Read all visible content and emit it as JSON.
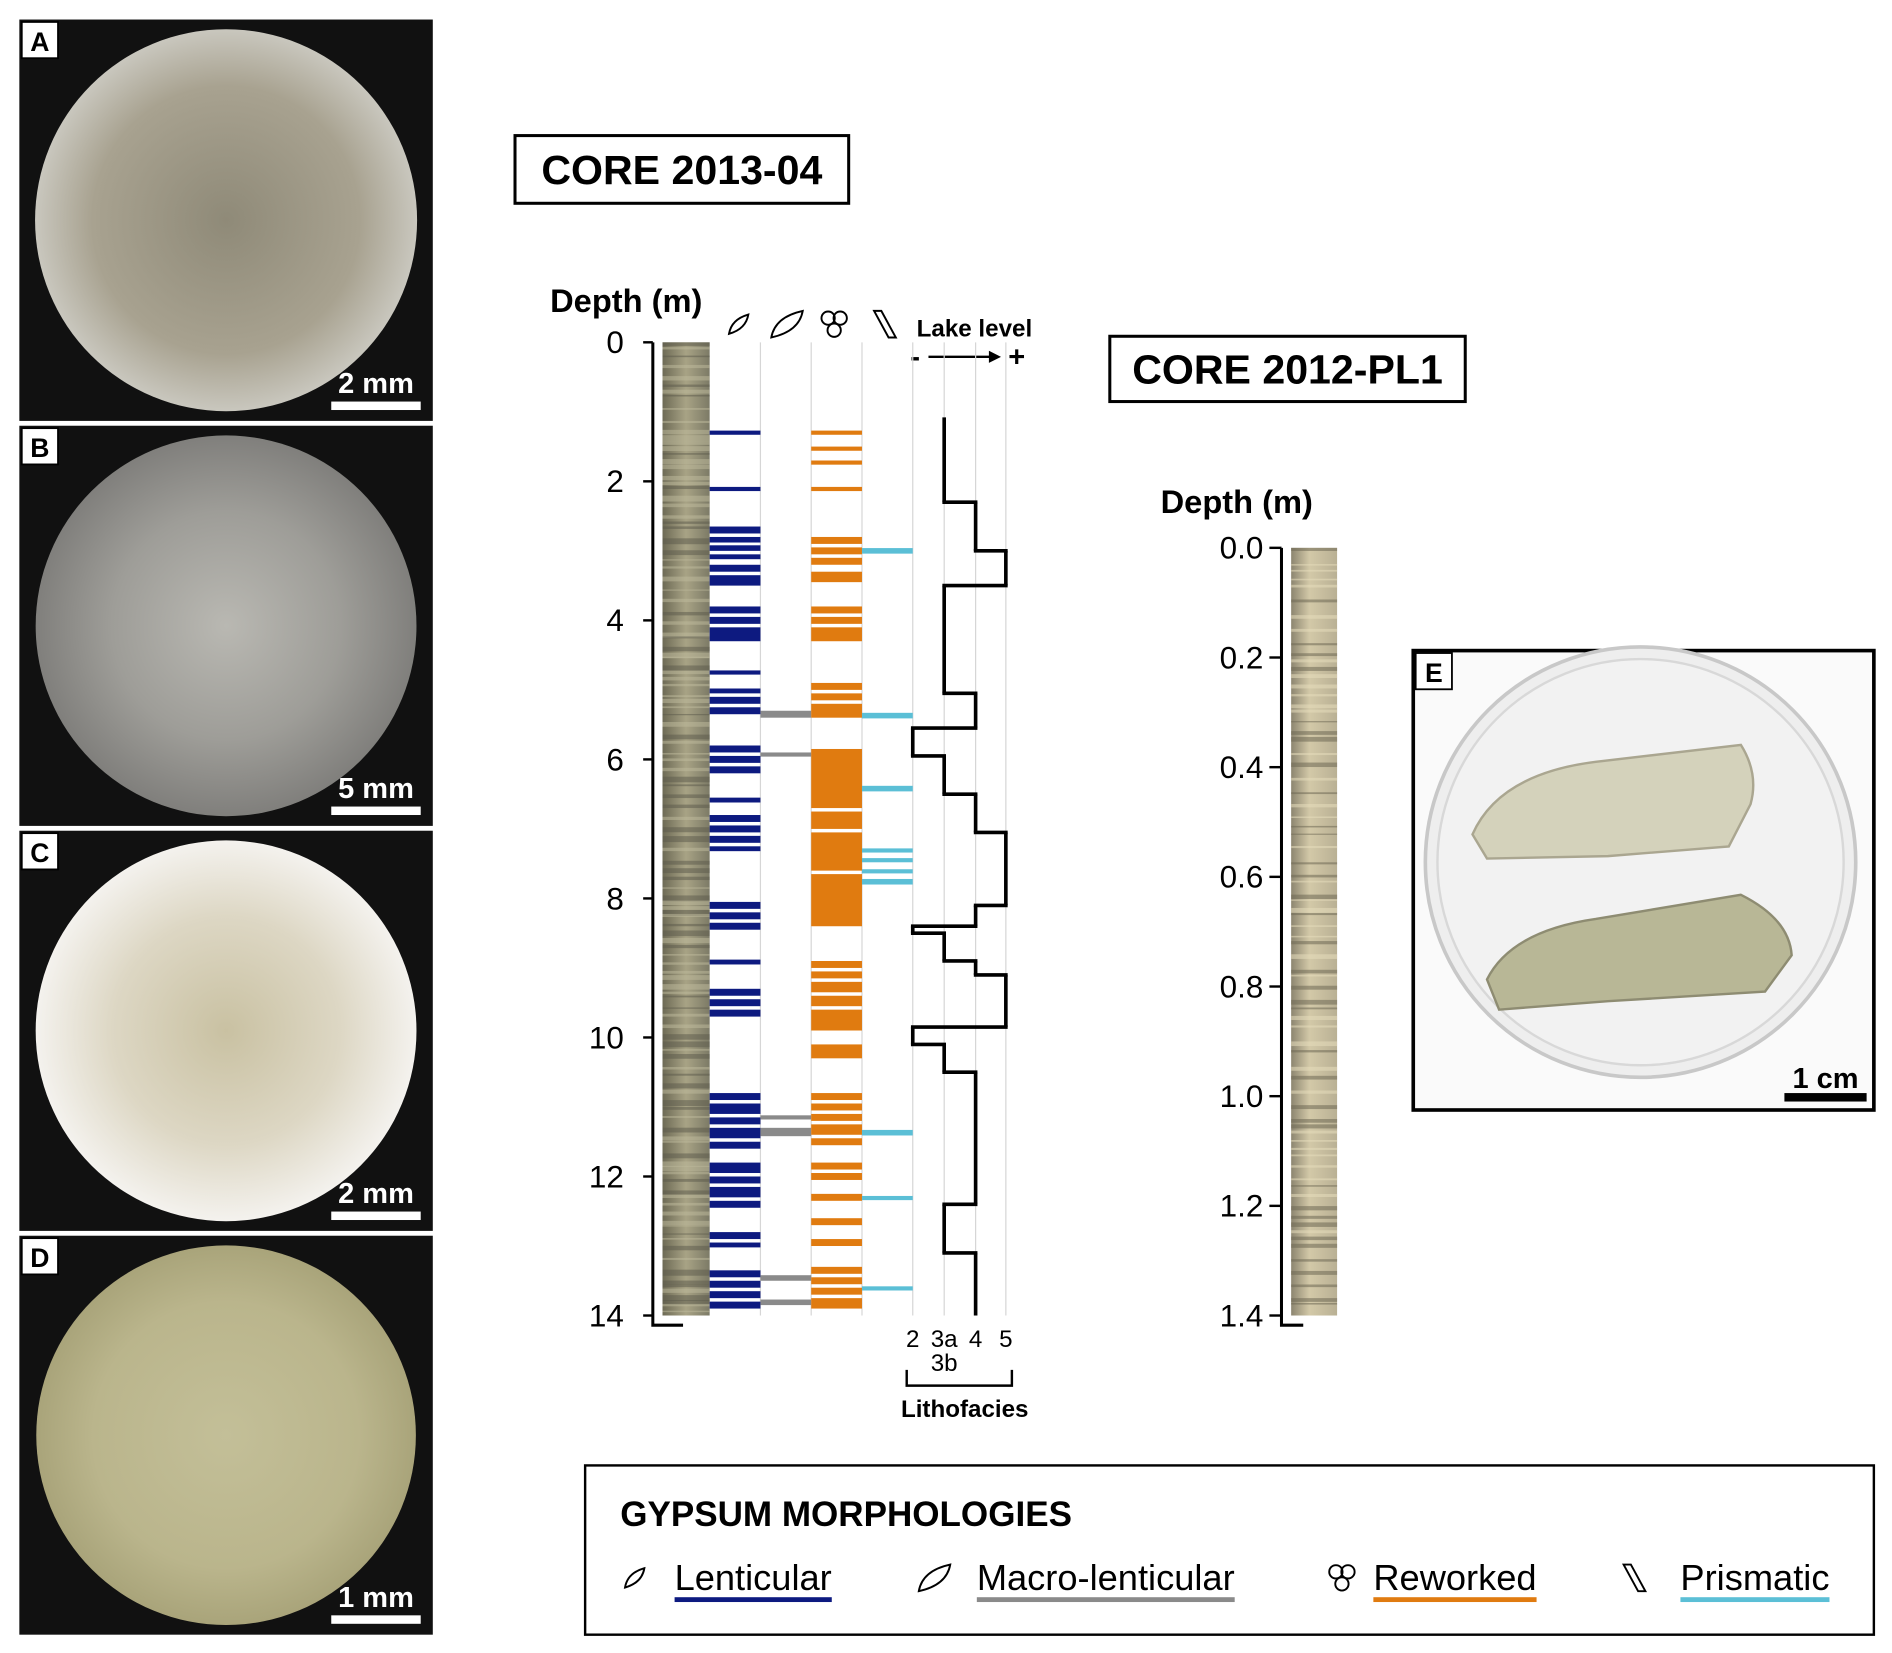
{
  "panels": [
    {
      "letter": "A",
      "scale": "2 mm"
    },
    {
      "letter": "B",
      "scale": "5 mm"
    },
    {
      "letter": "C",
      "scale": "2 mm"
    },
    {
      "letter": "D",
      "scale": "1 mm"
    },
    {
      "letter": "E",
      "scale": "1 cm"
    }
  ],
  "core_2013": {
    "title": "CORE 2013-04",
    "axis_label": "Depth (m)",
    "ylim": [
      0,
      14
    ],
    "yticks": [
      0,
      2,
      4,
      6,
      8,
      10,
      12,
      14
    ],
    "lake_level": {
      "label": "Lake level",
      "minus": "-",
      "plus": "+",
      "steps": [
        [
          1.08,
          2.3,
          "3a"
        ],
        [
          2.3,
          3.0,
          "4"
        ],
        [
          3.0,
          3.5,
          "5"
        ],
        [
          3.5,
          5.05,
          "3a"
        ],
        [
          5.05,
          5.55,
          "4"
        ],
        [
          5.55,
          5.95,
          "2"
        ],
        [
          5.95,
          6.5,
          "3a"
        ],
        [
          6.5,
          7.05,
          "4"
        ],
        [
          7.05,
          8.1,
          "5"
        ],
        [
          8.1,
          8.4,
          "4"
        ],
        [
          8.4,
          8.5,
          "2"
        ],
        [
          8.5,
          8.9,
          "3a"
        ],
        [
          8.9,
          9.1,
          "4"
        ],
        [
          9.1,
          9.85,
          "5"
        ],
        [
          9.85,
          10.1,
          "2"
        ],
        [
          10.1,
          10.5,
          "3a"
        ],
        [
          10.5,
          12.4,
          "4"
        ],
        [
          12.4,
          13.1,
          "3a"
        ],
        [
          13.1,
          14.0,
          "4"
        ]
      ]
    },
    "lithofacies": {
      "label": "Lithofacies",
      "ticks": [
        "2",
        "3a",
        "4",
        "5"
      ],
      "sub": "3b"
    },
    "morphologies": [
      {
        "name": "Lenticular",
        "color": "#0d1a80",
        "intervals": [
          [
            1.27,
            1.33
          ],
          [
            2.08,
            2.14
          ],
          [
            2.65,
            2.75
          ],
          [
            2.8,
            2.88
          ],
          [
            2.92,
            3.0
          ],
          [
            3.05,
            3.12
          ],
          [
            3.2,
            3.3
          ],
          [
            3.35,
            3.5
          ],
          [
            3.8,
            3.9
          ],
          [
            3.95,
            4.05
          ],
          [
            4.1,
            4.3
          ],
          [
            4.72,
            4.78
          ],
          [
            4.98,
            5.05
          ],
          [
            5.1,
            5.2
          ],
          [
            5.25,
            5.35
          ],
          [
            5.8,
            5.9
          ],
          [
            5.95,
            6.05
          ],
          [
            6.1,
            6.2
          ],
          [
            6.55,
            6.62
          ],
          [
            6.8,
            6.9
          ],
          [
            6.95,
            7.05
          ],
          [
            7.1,
            7.2
          ],
          [
            7.25,
            7.32
          ],
          [
            8.05,
            8.15
          ],
          [
            8.2,
            8.3
          ],
          [
            8.35,
            8.45
          ],
          [
            8.88,
            8.95
          ],
          [
            9.3,
            9.4
          ],
          [
            9.45,
            9.55
          ],
          [
            9.6,
            9.7
          ],
          [
            10.8,
            10.9
          ],
          [
            10.95,
            11.1
          ],
          [
            11.15,
            11.25
          ],
          [
            11.3,
            11.45
          ],
          [
            11.5,
            11.6
          ],
          [
            11.8,
            11.95
          ],
          [
            12.0,
            12.1
          ],
          [
            12.15,
            12.3
          ],
          [
            12.35,
            12.45
          ],
          [
            12.8,
            12.9
          ],
          [
            12.95,
            13.02
          ],
          [
            13.35,
            13.45
          ],
          [
            13.5,
            13.6
          ],
          [
            13.65,
            13.75
          ],
          [
            13.8,
            13.9
          ]
        ]
      },
      {
        "name": "Macro-lenticular",
        "color": "#8a8a8a",
        "intervals": [
          [
            5.3,
            5.4
          ],
          [
            5.9,
            5.96
          ],
          [
            11.12,
            11.18
          ],
          [
            11.3,
            11.42
          ],
          [
            13.42,
            13.5
          ],
          [
            13.77,
            13.85
          ]
        ]
      },
      {
        "name": "Reworked",
        "color": "#e07b10",
        "intervals": [
          [
            1.27,
            1.33
          ],
          [
            1.5,
            1.56
          ],
          [
            1.7,
            1.76
          ],
          [
            2.08,
            2.14
          ],
          [
            2.8,
            2.9
          ],
          [
            2.95,
            3.05
          ],
          [
            3.1,
            3.2
          ],
          [
            3.3,
            3.45
          ],
          [
            3.8,
            3.9
          ],
          [
            3.95,
            4.05
          ],
          [
            4.1,
            4.3
          ],
          [
            4.9,
            5.0
          ],
          [
            5.05,
            5.15
          ],
          [
            5.2,
            5.4
          ],
          [
            5.85,
            6.7
          ],
          [
            6.75,
            7.0
          ],
          [
            7.05,
            7.6
          ],
          [
            7.65,
            8.4
          ],
          [
            8.9,
            9.0
          ],
          [
            9.05,
            9.15
          ],
          [
            9.2,
            9.35
          ],
          [
            9.4,
            9.55
          ],
          [
            9.6,
            9.9
          ],
          [
            10.1,
            10.3
          ],
          [
            10.8,
            10.9
          ],
          [
            10.95,
            11.05
          ],
          [
            11.1,
            11.2
          ],
          [
            11.25,
            11.4
          ],
          [
            11.45,
            11.55
          ],
          [
            11.8,
            11.9
          ],
          [
            11.95,
            12.05
          ],
          [
            12.25,
            12.35
          ],
          [
            12.6,
            12.7
          ],
          [
            12.9,
            13.0
          ],
          [
            13.3,
            13.4
          ],
          [
            13.45,
            13.55
          ],
          [
            13.6,
            13.7
          ],
          [
            13.75,
            13.9
          ]
        ]
      },
      {
        "name": "Prismatic",
        "color": "#5bbfd6",
        "intervals": [
          [
            2.96,
            3.04
          ],
          [
            5.33,
            5.41
          ],
          [
            6.38,
            6.46
          ],
          [
            7.28,
            7.34
          ],
          [
            7.42,
            7.48
          ],
          [
            7.58,
            7.64
          ],
          [
            7.72,
            7.8
          ],
          [
            11.33,
            11.41
          ],
          [
            12.28,
            12.34
          ],
          [
            13.58,
            13.64
          ]
        ]
      }
    ]
  },
  "core_2012": {
    "title": "CORE 2012-PL1",
    "axis_label": "Depth (m)",
    "ylim": [
      0,
      1.4
    ],
    "yticks": [
      {
        "value": 0,
        "label": "0.0"
      },
      0.2,
      0.4,
      0.6,
      0.8,
      {
        "value": 1,
        "label": "1.0"
      },
      1.2,
      1.4
    ]
  },
  "legend": {
    "title": "GYPSUM MORPHOLOGIES"
  }
}
